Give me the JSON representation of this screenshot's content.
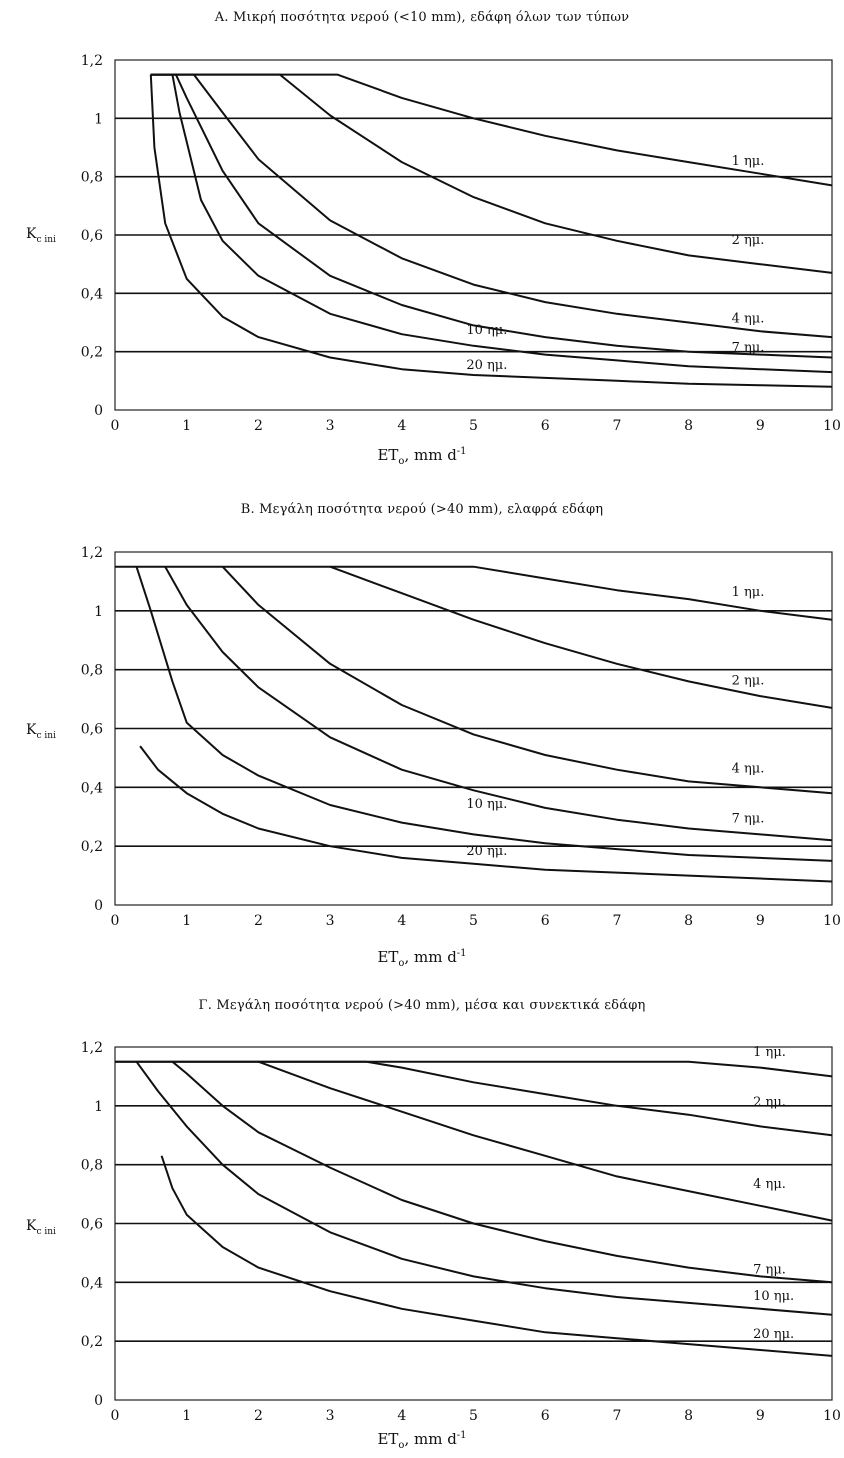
{
  "xlabel": "ET",
  "xlabel_sub": "o",
  "xlabel_unit": ", mm d",
  "xlabel_sup": "-1",
  "ylabel": "K",
  "ylabel_sub": "c ini",
  "chart_data": [
    {
      "type": "line",
      "title": "A. Μικρή ποσότητα νερού (<10 mm), εδάφη όλων των τύπων",
      "xlim": [
        0,
        10
      ],
      "ylim": [
        0,
        1.2
      ],
      "x_ticks": [
        "0",
        "1",
        "2",
        "3",
        "4",
        "5",
        "6",
        "7",
        "8",
        "9",
        "10"
      ],
      "y_ticks": [
        "0",
        "0,2",
        "0,4",
        "0,6",
        "0,8",
        "1",
        "1,2"
      ],
      "grid": "horizontal",
      "series": [
        {
          "name": "1 ημ.",
          "points": [
            [
              0.5,
              1.15
            ],
            [
              3.1,
              1.15
            ],
            [
              4,
              1.07
            ],
            [
              5,
              1.0
            ],
            [
              6,
              0.94
            ],
            [
              7,
              0.89
            ],
            [
              8,
              0.85
            ],
            [
              9,
              0.81
            ],
            [
              10,
              0.77
            ]
          ]
        },
        {
          "name": "2 ημ.",
          "points": [
            [
              0.5,
              1.15
            ],
            [
              2.3,
              1.15
            ],
            [
              3,
              1.01
            ],
            [
              4,
              0.85
            ],
            [
              5,
              0.73
            ],
            [
              6,
              0.64
            ],
            [
              7,
              0.58
            ],
            [
              8,
              0.53
            ],
            [
              9,
              0.5
            ],
            [
              10,
              0.47
            ]
          ]
        },
        {
          "name": "4 ημ.",
          "points": [
            [
              0.5,
              1.15
            ],
            [
              1.1,
              1.15
            ],
            [
              1.5,
              1.02
            ],
            [
              2,
              0.86
            ],
            [
              3,
              0.65
            ],
            [
              4,
              0.52
            ],
            [
              5,
              0.43
            ],
            [
              6,
              0.37
            ],
            [
              7,
              0.33
            ],
            [
              8,
              0.3
            ],
            [
              9,
              0.27
            ],
            [
              10,
              0.25
            ]
          ]
        },
        {
          "name": "7 ημ.",
          "points": [
            [
              0.5,
              1.15
            ],
            [
              0.85,
              1.15
            ],
            [
              1,
              1.07
            ],
            [
              1.5,
              0.82
            ],
            [
              2,
              0.64
            ],
            [
              3,
              0.46
            ],
            [
              4,
              0.36
            ],
            [
              5,
              0.29
            ],
            [
              6,
              0.25
            ],
            [
              7,
              0.22
            ],
            [
              8,
              0.2
            ],
            [
              9,
              0.19
            ],
            [
              10,
              0.18
            ]
          ]
        },
        {
          "name": "10 ημ.",
          "points": [
            [
              0.5,
              1.15
            ],
            [
              0.8,
              1.15
            ],
            [
              0.9,
              1.02
            ],
            [
              1.2,
              0.72
            ],
            [
              1.5,
              0.58
            ],
            [
              2,
              0.46
            ],
            [
              3,
              0.33
            ],
            [
              4,
              0.26
            ],
            [
              5,
              0.22
            ],
            [
              6,
              0.19
            ],
            [
              7,
              0.17
            ],
            [
              8,
              0.15
            ],
            [
              9,
              0.14
            ],
            [
              10,
              0.13
            ]
          ]
        },
        {
          "name": "20 ημ.",
          "points": [
            [
              0.5,
              1.15
            ],
            [
              0.55,
              0.9
            ],
            [
              0.7,
              0.64
            ],
            [
              1,
              0.45
            ],
            [
              1.5,
              0.32
            ],
            [
              2,
              0.25
            ],
            [
              3,
              0.18
            ],
            [
              4,
              0.14
            ],
            [
              5,
              0.12
            ],
            [
              6,
              0.11
            ],
            [
              7,
              0.1
            ],
            [
              8,
              0.09
            ],
            [
              9,
              0.085
            ],
            [
              10,
              0.08
            ]
          ]
        }
      ],
      "annotations": [
        "1 ημ.",
        "2 ημ.",
        "4 ημ.",
        "7 ημ.",
        "10 ημ.",
        "20 ημ."
      ]
    },
    {
      "type": "line",
      "title": "B. Μεγάλη ποσότητα νερού (>40 mm), ελαφρά εδάφη",
      "xlim": [
        0,
        10
      ],
      "ylim": [
        0,
        1.2
      ],
      "x_ticks": [
        "0",
        "1",
        "2",
        "3",
        "4",
        "5",
        "6",
        "7",
        "8",
        "9",
        "10"
      ],
      "y_ticks": [
        "0",
        "0,2",
        "0,4",
        "0,6",
        "0,8",
        "1",
        "1,2"
      ],
      "grid": "horizontal",
      "series": [
        {
          "name": "1 ημ.",
          "points": [
            [
              0,
              1.15
            ],
            [
              5,
              1.15
            ],
            [
              6,
              1.11
            ],
            [
              7,
              1.07
            ],
            [
              8,
              1.04
            ],
            [
              9,
              1.0
            ],
            [
              10,
              0.97
            ]
          ]
        },
        {
          "name": "2 ημ.",
          "points": [
            [
              3,
              1.15
            ],
            [
              4,
              1.06
            ],
            [
              5,
              0.97
            ],
            [
              6,
              0.89
            ],
            [
              7,
              0.82
            ],
            [
              8,
              0.76
            ],
            [
              9,
              0.71
            ],
            [
              10,
              0.67
            ]
          ]
        },
        {
          "name": "4 ημ.",
          "points": [
            [
              1.5,
              1.15
            ],
            [
              2,
              1.02
            ],
            [
              3,
              0.82
            ],
            [
              4,
              0.68
            ],
            [
              5,
              0.58
            ],
            [
              6,
              0.51
            ],
            [
              7,
              0.46
            ],
            [
              8,
              0.42
            ],
            [
              9,
              0.4
            ],
            [
              10,
              0.38
            ]
          ]
        },
        {
          "name": "7 ημ.",
          "points": [
            [
              0.7,
              1.15
            ],
            [
              1,
              1.02
            ],
            [
              1.5,
              0.86
            ],
            [
              2,
              0.74
            ],
            [
              3,
              0.57
            ],
            [
              4,
              0.46
            ],
            [
              5,
              0.39
            ],
            [
              6,
              0.33
            ],
            [
              7,
              0.29
            ],
            [
              8,
              0.26
            ],
            [
              9,
              0.24
            ],
            [
              10,
              0.22
            ]
          ]
        },
        {
          "name": "10 ημ.",
          "points": [
            [
              0.3,
              1.15
            ],
            [
              0.5,
              1.0
            ],
            [
              0.8,
              0.76
            ],
            [
              1,
              0.62
            ],
            [
              1.5,
              0.51
            ],
            [
              2,
              0.44
            ],
            [
              3,
              0.34
            ],
            [
              4,
              0.28
            ],
            [
              5,
              0.24
            ],
            [
              6,
              0.21
            ],
            [
              7,
              0.19
            ],
            [
              8,
              0.17
            ],
            [
              9,
              0.16
            ],
            [
              10,
              0.15
            ]
          ]
        },
        {
          "name": "20 ημ.",
          "points": [
            [
              0.35,
              0.54
            ],
            [
              0.6,
              0.46
            ],
            [
              1,
              0.38
            ],
            [
              1.5,
              0.31
            ],
            [
              2,
              0.26
            ],
            [
              3,
              0.2
            ],
            [
              4,
              0.16
            ],
            [
              5,
              0.14
            ],
            [
              6,
              0.12
            ],
            [
              7,
              0.11
            ],
            [
              8,
              0.1
            ],
            [
              9,
              0.09
            ],
            [
              10,
              0.08
            ]
          ]
        }
      ],
      "annotations": [
        "1 ημ.",
        "2 ημ.",
        "4 ημ.",
        "7 ημ.",
        "10 ημ.",
        "20 ημ."
      ]
    },
    {
      "type": "line",
      "title": "Γ. Μεγάλη ποσότητα νερού (>40 mm), μέσα και συνεκτικά εδάφη",
      "xlim": [
        0,
        10
      ],
      "ylim": [
        0,
        1.2
      ],
      "x_ticks": [
        "0",
        "1",
        "2",
        "3",
        "4",
        "5",
        "6",
        "7",
        "8",
        "9",
        "10"
      ],
      "y_ticks": [
        "0",
        "0,2",
        "0,4",
        "0,6",
        "0,8",
        "1",
        "1,2"
      ],
      "grid": "horizontal",
      "series": [
        {
          "name": "1 ημ.",
          "points": [
            [
              0,
              1.15
            ],
            [
              8,
              1.15
            ],
            [
              9,
              1.13
            ],
            [
              10,
              1.1
            ]
          ]
        },
        {
          "name": "2 ημ.",
          "points": [
            [
              0,
              1.15
            ],
            [
              3.5,
              1.15
            ],
            [
              4,
              1.13
            ],
            [
              5,
              1.08
            ],
            [
              6,
              1.04
            ],
            [
              7,
              1.0
            ],
            [
              8,
              0.97
            ],
            [
              9,
              0.93
            ],
            [
              10,
              0.9
            ]
          ]
        },
        {
          "name": "4 ημ.",
          "points": [
            [
              2,
              1.15
            ],
            [
              3,
              1.06
            ],
            [
              4,
              0.98
            ],
            [
              5,
              0.9
            ],
            [
              6,
              0.83
            ],
            [
              7,
              0.76
            ],
            [
              8,
              0.71
            ],
            [
              9,
              0.66
            ],
            [
              10,
              0.61
            ]
          ]
        },
        {
          "name": "7 ημ.",
          "points": [
            [
              0.8,
              1.15
            ],
            [
              1,
              1.11
            ],
            [
              1.5,
              1.0
            ],
            [
              2,
              0.91
            ],
            [
              3,
              0.79
            ],
            [
              4,
              0.68
            ],
            [
              5,
              0.6
            ],
            [
              6,
              0.54
            ],
            [
              7,
              0.49
            ],
            [
              8,
              0.45
            ],
            [
              9,
              0.42
            ],
            [
              10,
              0.4
            ]
          ]
        },
        {
          "name": "10 ημ.",
          "points": [
            [
              0.3,
              1.15
            ],
            [
              0.6,
              1.05
            ],
            [
              1,
              0.93
            ],
            [
              1.5,
              0.8
            ],
            [
              2,
              0.7
            ],
            [
              3,
              0.57
            ],
            [
              4,
              0.48
            ],
            [
              5,
              0.42
            ],
            [
              6,
              0.38
            ],
            [
              7,
              0.35
            ],
            [
              8,
              0.33
            ],
            [
              9,
              0.31
            ],
            [
              10,
              0.29
            ]
          ]
        },
        {
          "name": "20 ημ.",
          "points": [
            [
              0.65,
              0.83
            ],
            [
              0.8,
              0.72
            ],
            [
              1,
              0.63
            ],
            [
              1.5,
              0.52
            ],
            [
              2,
              0.45
            ],
            [
              3,
              0.37
            ],
            [
              4,
              0.31
            ],
            [
              5,
              0.27
            ],
            [
              6,
              0.23
            ],
            [
              7,
              0.21
            ],
            [
              8,
              0.19
            ],
            [
              9,
              0.17
            ],
            [
              10,
              0.15
            ]
          ]
        }
      ],
      "annotations": [
        "1 ημ.",
        "2 ημ.",
        "4 ημ.",
        "7 ημ.",
        "10 ημ.",
        "20 ημ."
      ]
    }
  ]
}
